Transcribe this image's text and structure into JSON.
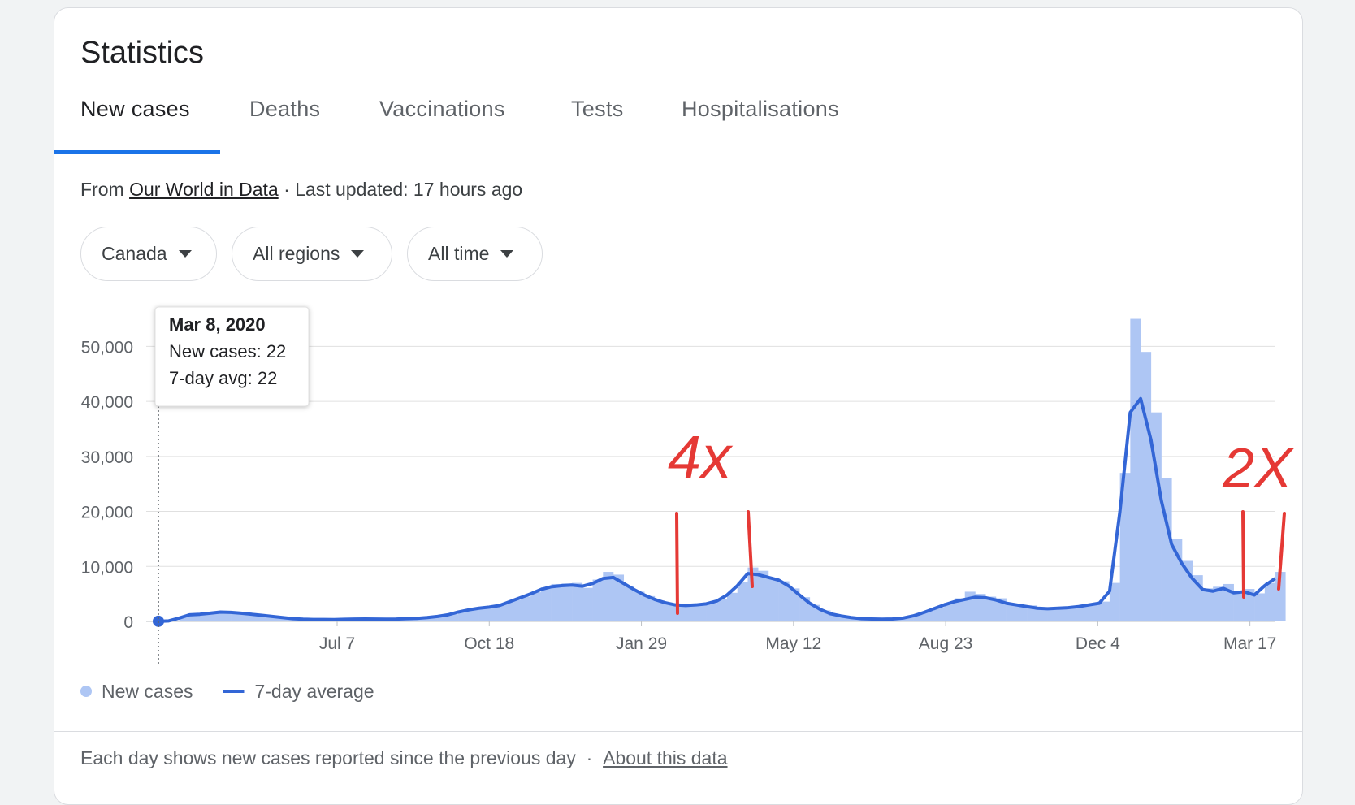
{
  "header": {
    "title": "Statistics"
  },
  "tabs": [
    "New cases",
    "Deaths",
    "Vaccinations",
    "Tests",
    "Hospitalisations"
  ],
  "source": {
    "prefix": "From",
    "link": "Our World in Data",
    "suffix": "· Last updated: 17 hours ago"
  },
  "filters": [
    "Canada",
    "All regions",
    "All time"
  ],
  "tooltip": {
    "date": "Mar 8, 2020",
    "new_cases": "New cases: 22",
    "avg": "7-day avg: 22"
  },
  "annotations": [
    "4x",
    "2X"
  ],
  "chart_data": {
    "type": "combo",
    "color_grid": "#e0e0e0",
    "grid": true,
    "ylim": [
      0,
      57000
    ],
    "yticks": [
      0,
      {
        "value": 10000,
        "label": "10,000"
      },
      {
        "value": 20000,
        "label": "20,000"
      },
      {
        "value": 30000,
        "label": "30,000"
      },
      {
        "value": 40000,
        "label": "40,000"
      },
      {
        "value": 50000,
        "label": "50,000"
      }
    ],
    "xlim": [
      0,
      759
    ],
    "xticks": [
      {
        "value": 121,
        "label": "Jul 7"
      },
      {
        "value": 224,
        "label": "Oct 18"
      },
      {
        "value": 327,
        "label": "Jan 29"
      },
      {
        "value": 430,
        "label": "May 12"
      },
      {
        "value": 533,
        "label": "Aug 23"
      },
      {
        "value": 636,
        "label": "Dec 4"
      },
      {
        "value": 739,
        "label": "Mar 17"
      }
    ],
    "x": [
      0,
      7,
      14,
      21,
      28,
      35,
      42,
      49,
      56,
      63,
      70,
      77,
      84,
      91,
      98,
      105,
      112,
      119,
      126,
      133,
      140,
      147,
      154,
      161,
      168,
      175,
      182,
      189,
      196,
      203,
      210,
      217,
      224,
      231,
      238,
      245,
      252,
      259,
      266,
      273,
      280,
      287,
      294,
      301,
      308,
      315,
      322,
      329,
      336,
      343,
      350,
      357,
      364,
      371,
      378,
      385,
      392,
      399,
      406,
      413,
      420,
      427,
      434,
      441,
      448,
      455,
      462,
      469,
      476,
      483,
      490,
      497,
      504,
      511,
      518,
      525,
      532,
      539,
      546,
      553,
      560,
      567,
      574,
      581,
      588,
      595,
      602,
      609,
      616,
      623,
      630,
      637,
      644,
      651,
      658,
      665,
      672,
      679,
      686,
      693,
      700,
      707,
      714,
      721,
      728,
      735,
      742,
      749,
      756
    ],
    "series": [
      {
        "name": "New cases",
        "type": "bar",
        "color": "#aec6f4",
        "values": [
          22,
          150,
          800,
          1300,
          1400,
          1700,
          1900,
          1500,
          1600,
          1200,
          1100,
          800,
          700,
          550,
          400,
          300,
          400,
          300,
          450,
          400,
          500,
          350,
          450,
          400,
          550,
          500,
          800,
          1000,
          1300,
          1900,
          2300,
          2600,
          2700,
          3200,
          3900,
          4500,
          5300,
          6200,
          6800,
          6900,
          7000,
          6100,
          7600,
          9000,
          8500,
          6500,
          5400,
          4600,
          3800,
          3200,
          2800,
          3100,
          3200,
          3300,
          4000,
          5200,
          7200,
          9800,
          9200,
          7700,
          7300,
          6000,
          4400,
          3000,
          2000,
          1200,
          900,
          600,
          450,
          400,
          350,
          500,
          700,
          1200,
          1900,
          2600,
          3400,
          4200,
          5400,
          5000,
          4500,
          4200,
          3100,
          2800,
          2900,
          2200,
          2100,
          2600,
          2700,
          2900,
          3300,
          3600,
          7000,
          27000,
          55000,
          49000,
          38000,
          26000,
          15000,
          11000,
          8400,
          6000,
          6300,
          6800,
          5400,
          5900,
          5100,
          7000,
          9000
        ]
      },
      {
        "name": "7-day average",
        "type": "line",
        "color": "#3366d6",
        "values": [
          22,
          100,
          600,
          1200,
          1300,
          1500,
          1700,
          1650,
          1500,
          1300,
          1100,
          900,
          700,
          500,
          400,
          350,
          350,
          330,
          380,
          420,
          450,
          420,
          400,
          420,
          500,
          550,
          700,
          900,
          1200,
          1700,
          2100,
          2400,
          2600,
          2900,
          3600,
          4300,
          5000,
          5800,
          6300,
          6500,
          6600,
          6400,
          6900,
          7800,
          8000,
          6900,
          5800,
          4800,
          4000,
          3400,
          3000,
          2900,
          3000,
          3200,
          3700,
          4800,
          6500,
          8700,
          8500,
          8000,
          7500,
          6400,
          4800,
          3300,
          2200,
          1400,
          1000,
          700,
          500,
          450,
          400,
          450,
          600,
          1000,
          1600,
          2300,
          3000,
          3600,
          4000,
          4400,
          4300,
          3900,
          3300,
          3000,
          2700,
          2400,
          2300,
          2400,
          2500,
          2700,
          3000,
          3300,
          5500,
          20000,
          38000,
          40500,
          33000,
          22000,
          14000,
          10500,
          7800,
          5800,
          5500,
          6000,
          5200,
          5400,
          4800,
          6500,
          7800
        ]
      }
    ]
  },
  "footer": {
    "note": "Each day shows new cases reported since the previous day",
    "separator": "·",
    "link": "About this data"
  }
}
